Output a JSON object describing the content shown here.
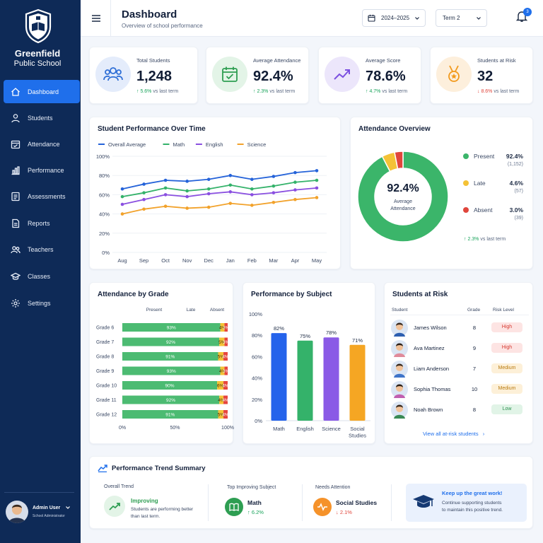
{
  "sidebar": {
    "brand_line1": "Greenfield",
    "brand_line2": "Public School",
    "items": [
      {
        "label": "Dashboard",
        "icon": "home-icon",
        "active": true
      },
      {
        "label": "Students",
        "icon": "user-icon"
      },
      {
        "label": "Attendance",
        "icon": "calendar-check-icon"
      },
      {
        "label": "Performance",
        "icon": "bar-chart-icon"
      },
      {
        "label": "Assessments",
        "icon": "list-icon"
      },
      {
        "label": "Reports",
        "icon": "document-icon"
      },
      {
        "label": "Teachers",
        "icon": "users-icon"
      },
      {
        "label": "Classes",
        "icon": "graduation-cap-icon"
      },
      {
        "label": "Settings",
        "icon": "gear-icon"
      }
    ],
    "user": {
      "name": "Admin User",
      "role": "School Administrator"
    }
  },
  "header": {
    "title": "Dashboard",
    "subtitle": "Overview of school performance",
    "year_select": "2024–2025",
    "term_select": "Term 2",
    "notification_count": "3"
  },
  "stats": [
    {
      "label": "Total Students",
      "value": "1,248",
      "delta": "5.6%",
      "delta_suffix": "vs last term",
      "direction": "up",
      "icon": "students-icon",
      "icon_bg": "#e4ecfb",
      "icon_color": "#2f6fd6"
    },
    {
      "label": "Average Attendance",
      "value": "92.4%",
      "delta": "2.3%",
      "delta_suffix": "vs last term",
      "direction": "up",
      "icon": "calendar-check-icon",
      "icon_bg": "#e3f4e7",
      "icon_color": "#2e9e52"
    },
    {
      "label": "Average Score",
      "value": "78.6%",
      "delta": "4.7%",
      "delta_suffix": "vs last term",
      "direction": "up",
      "icon": "trend-up-icon",
      "icon_bg": "#ece6fb",
      "icon_color": "#7b4fe0"
    },
    {
      "label": "Students at Risk",
      "value": "32",
      "delta": "8.6%",
      "delta_suffix": "vs last term",
      "direction": "down",
      "icon": "medal-icon",
      "icon_bg": "#fdefdc",
      "icon_color": "#f29a1d"
    }
  ],
  "chart_data": [
    {
      "type": "line",
      "title": "Student Performance Over Time",
      "x": [
        "Aug",
        "Sep",
        "Oct",
        "Nov",
        "Dec",
        "Jan",
        "Feb",
        "Mar",
        "Apr",
        "May"
      ],
      "ylim": [
        0,
        100
      ],
      "yticks": [
        "0%",
        "20%",
        "40%",
        "60%",
        "80%",
        "100%"
      ],
      "series": [
        {
          "name": "Overall Average",
          "color": "#2563d9",
          "values": [
            66,
            71,
            75,
            74,
            76,
            80,
            76,
            79,
            83,
            85
          ]
        },
        {
          "name": "Math",
          "color": "#34b26a",
          "values": [
            58,
            62,
            67,
            64,
            66,
            70,
            66,
            69,
            73,
            75
          ]
        },
        {
          "name": "English",
          "color": "#8a4fe0",
          "values": [
            50,
            55,
            60,
            58,
            61,
            63,
            60,
            62,
            65,
            67
          ]
        },
        {
          "name": "Science",
          "color": "#f2a22b",
          "values": [
            40,
            45,
            48,
            46,
            47,
            51,
            49,
            52,
            55,
            57
          ]
        }
      ]
    },
    {
      "type": "pie",
      "title": "Attendance Overview",
      "center_value": "92.4%",
      "center_label": "Average Attendance",
      "slices": [
        {
          "name": "Present",
          "pct": "92.4%",
          "count": "(1,152)",
          "value": 92.4,
          "color": "#3bb56a"
        },
        {
          "name": "Late",
          "pct": "4.6%",
          "count": "(57)",
          "value": 4.6,
          "color": "#f4c236"
        },
        {
          "name": "Absent",
          "pct": "3.0%",
          "count": "(39)",
          "value": 3.0,
          "color": "#e0463c"
        }
      ],
      "footer_delta": "2.3%",
      "footer_suffix": "vs last term"
    },
    {
      "type": "bar",
      "title": "Attendance by Grade",
      "columns": [
        "Present",
        "Late",
        "Absent"
      ],
      "categories": [
        "Grade 6",
        "Grade 7",
        "Grade 8",
        "Grade 9",
        "Grade 10",
        "Grade 11",
        "Grade 12"
      ],
      "series": [
        {
          "name": "Present",
          "color": "#4cbb72",
          "values": [
            93,
            92,
            91,
            93,
            90,
            92,
            91
          ]
        },
        {
          "name": "Late",
          "color": "#f4c236",
          "values": [
            4,
            5,
            5,
            4,
            6,
            4,
            5
          ]
        },
        {
          "name": "Absent",
          "color": "#e6453d",
          "values": [
            3,
            3,
            4,
            3,
            4,
            4,
            4
          ]
        }
      ],
      "xticks": [
        "0%",
        "50%",
        "100%"
      ]
    },
    {
      "type": "bar",
      "title": "Performance by Subject",
      "categories": [
        "Math",
        "English",
        "Science",
        "Social Studies"
      ],
      "category_lines": [
        [
          "Math"
        ],
        [
          "English"
        ],
        [
          "Science"
        ],
        [
          "Social",
          "Studies"
        ]
      ],
      "values": [
        82,
        75,
        78,
        71
      ],
      "value_labels": [
        "82%",
        "75%",
        "78%",
        "71%"
      ],
      "colors": [
        "#2563eb",
        "#34b26a",
        "#8a5ae6",
        "#f5a623"
      ],
      "ylim": [
        0,
        100
      ],
      "yticks": [
        "0%",
        "20%",
        "40%",
        "60%",
        "80%",
        "100%"
      ]
    }
  ],
  "risk": {
    "title": "Students at Risk",
    "headers": [
      "Student",
      "Grade",
      "Risk Level"
    ],
    "rows": [
      {
        "name": "James Wilson",
        "grade": "8",
        "level": "High"
      },
      {
        "name": "Ava Martinez",
        "grade": "9",
        "level": "High"
      },
      {
        "name": "Liam Anderson",
        "grade": "7",
        "level": "Medium"
      },
      {
        "name": "Sophia Thomas",
        "grade": "10",
        "level": "Medium"
      },
      {
        "name": "Noah Brown",
        "grade": "8",
        "level": "Low"
      }
    ],
    "view_all": "View all at-risk students"
  },
  "summary": {
    "title": "Performance Trend Summary",
    "overall_label": "Overall Trend",
    "overall_value": "Improving",
    "overall_desc_1": "Students are performing better",
    "overall_desc_2": "than last term.",
    "top_label": "Top Improving Subject",
    "top_value": "Math",
    "top_delta": "6.2%",
    "attention_label": "Needs Attention",
    "attention_value": "Social Studies",
    "attention_delta": "2.1%",
    "tip_title": "Keep up the great work!",
    "tip_line1": "Continue supporting students",
    "tip_line2": "to maintain this positive trend."
  }
}
